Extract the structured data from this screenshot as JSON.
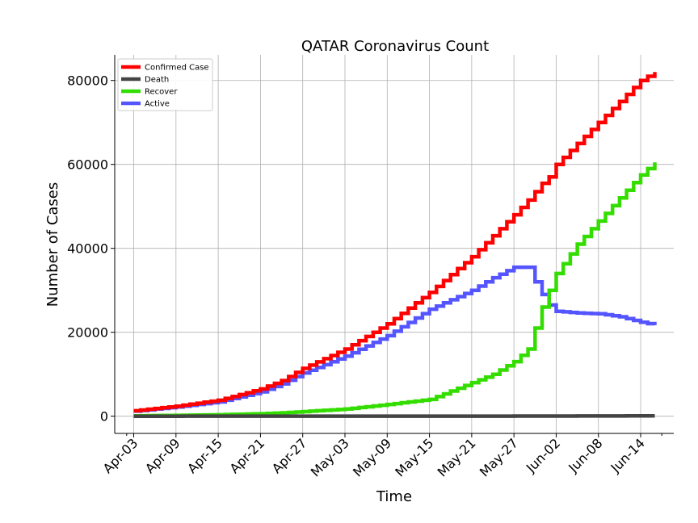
{
  "chart_data": {
    "type": "line",
    "title": "QATAR Coronavirus Count",
    "xlabel": "Time",
    "ylabel": "Number of Cases",
    "x_start": "2020-04-03",
    "x_end": "2020-06-16",
    "x_ticks": [
      "Apr-03",
      "Apr-09",
      "Apr-15",
      "Apr-21",
      "Apr-27",
      "May-03",
      "May-09",
      "May-15",
      "May-21",
      "May-27",
      "Jun-02",
      "Jun-08",
      "Jun-14"
    ],
    "ylim": [
      -4100,
      86100
    ],
    "y_ticks": [
      0,
      20000,
      40000,
      60000,
      80000
    ],
    "y_tick_labels": [
      "0",
      "20000",
      "40000",
      "60000",
      "80000"
    ],
    "grid": true,
    "legend_position": "top-left",
    "x": [
      "2020-04-03",
      "2020-04-09",
      "2020-04-15",
      "2020-04-21",
      "2020-04-24",
      "2020-04-27",
      "2020-05-03",
      "2020-05-09",
      "2020-05-15",
      "2020-05-21",
      "2020-05-24",
      "2020-05-27",
      "2020-05-29",
      "2020-05-30",
      "2020-05-31",
      "2020-06-01",
      "2020-06-02",
      "2020-06-05",
      "2020-06-08",
      "2020-06-11",
      "2020-06-14",
      "2020-06-16"
    ],
    "series": [
      {
        "name": "Confirmed Case",
        "color": "#ff0000",
        "values": [
          1300,
          2400,
          3800,
          6500,
          8500,
          11400,
          16000,
          22000,
          29500,
          38000,
          43000,
          48000,
          51500,
          53500,
          55500,
          57000,
          60000,
          65000,
          70000,
          75000,
          80000,
          82000
        ]
      },
      {
        "name": "Death",
        "color": "#444444",
        "values": [
          3,
          6,
          7,
          10,
          11,
          12,
          14,
          15,
          16,
          20,
          22,
          26,
          30,
          33,
          36,
          40,
          40,
          46,
          54,
          63,
          70,
          75
        ]
      },
      {
        "name": "Recover",
        "color": "#33dd00",
        "values": [
          100,
          200,
          350,
          600,
          800,
          1100,
          1700,
          2800,
          4000,
          8000,
          10000,
          13000,
          16000,
          21000,
          26000,
          30000,
          34000,
          41000,
          46500,
          52000,
          57500,
          60500
        ]
      },
      {
        "name": "Active",
        "color": "#5555ff",
        "values": [
          1200,
          2200,
          3400,
          5800,
          7700,
          10300,
          14300,
          19200,
          25500,
          30000,
          33000,
          35500,
          35500,
          32000,
          29000,
          26500,
          25000,
          24600,
          24400,
          23700,
          22400,
          21700
        ]
      }
    ]
  }
}
